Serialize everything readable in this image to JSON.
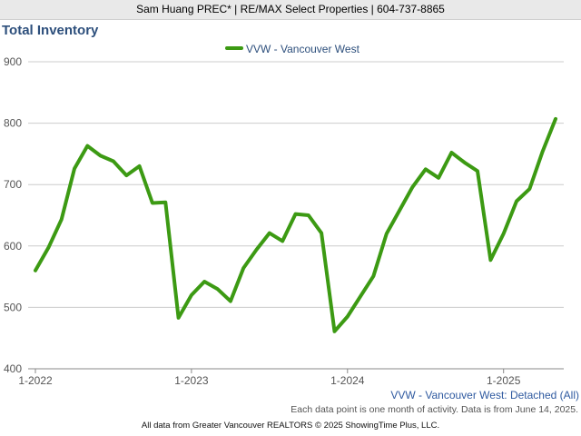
{
  "header": {
    "text": "Sam Huang PREC* | RE/MAX Select Properties | 604-737-8865"
  },
  "chart_data": {
    "type": "line",
    "title": "Total Inventory",
    "xlabel": "",
    "ylabel": "",
    "ylim": [
      400,
      900
    ],
    "yticks": [
      "400",
      "500",
      "600",
      "700",
      "800",
      "900"
    ],
    "xticks": [
      "1-2022",
      "1-2023",
      "1-2024",
      "1-2025"
    ],
    "grid": true,
    "legend_position": "top-center",
    "series": [
      {
        "name": "VVW - Vancouver West",
        "color": "#3c9a13",
        "values": [
          560,
          597,
          643,
          726,
          763,
          747,
          738,
          715,
          730,
          670,
          671,
          483,
          520,
          542,
          530,
          510,
          564,
          594,
          621,
          608,
          652,
          650,
          621,
          461,
          485,
          518,
          551,
          620,
          658,
          696,
          725,
          711,
          752,
          736,
          722,
          577,
          620,
          673,
          693,
          754,
          807
        ]
      }
    ]
  },
  "caption": "VVW - Vancouver West: Detached (All)",
  "note": "Each data point is one month of activity. Data is from June 14, 2025.",
  "footer": "All data from Greater Vancouver REALTORS © 2025 ShowingTime Plus, LLC."
}
